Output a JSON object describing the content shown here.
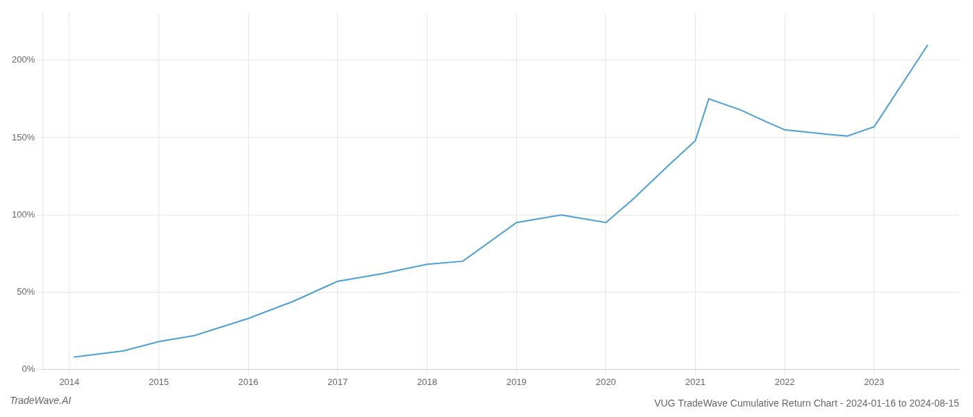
{
  "chart_data": {
    "type": "line",
    "title": "VUG TradeWave Cumulative Return Chart - 2024-01-16 to 2024-08-15",
    "annotations": [
      "TradeWave.AI"
    ],
    "x": [
      2014.05,
      2014.6,
      2015.0,
      2015.4,
      2016.0,
      2016.5,
      2017.0,
      2017.5,
      2018.0,
      2018.4,
      2019.0,
      2019.5,
      2020.0,
      2020.3,
      2020.7,
      2021.0,
      2021.15,
      2021.5,
      2021.8,
      2022.0,
      2022.5,
      2022.7,
      2023.0,
      2023.6
    ],
    "values": [
      8,
      12,
      18,
      22,
      33,
      44,
      57,
      62,
      68,
      70,
      95,
      100,
      95,
      110,
      132,
      148,
      175,
      168,
      160,
      155,
      152,
      151,
      157,
      210
    ],
    "color": "#4a9fd4",
    "xlim": [
      2013.7,
      2023.95
    ],
    "xticks": [
      2014,
      2015,
      2016,
      2017,
      2018,
      2019,
      2020,
      2021,
      2022,
      2023
    ],
    "ylim": [
      0,
      230
    ],
    "yticks": [
      {
        "value": 0,
        "label": "0%"
      },
      {
        "value": 50,
        "label": "50%"
      },
      {
        "value": 100,
        "label": "100%"
      },
      {
        "value": 150,
        "label": "150%"
      },
      {
        "value": 200,
        "label": "200%"
      }
    ],
    "grid": true
  }
}
